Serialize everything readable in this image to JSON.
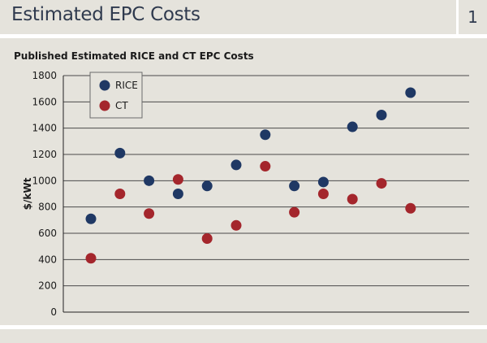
{
  "header": {
    "title": "Estimated EPC Costs",
    "number": "1"
  },
  "chart_data": {
    "type": "scatter",
    "title": "Published Estimated RICE and CT EPC Costs",
    "xlabel": "",
    "ylabel": "$/kWt",
    "ylim": [
      0,
      1800
    ],
    "yticks": [
      0,
      200,
      400,
      600,
      800,
      1000,
      1200,
      1400,
      1600,
      1800
    ],
    "grid": true,
    "legend_position": "top-left",
    "x": [
      1,
      2,
      3,
      4,
      5,
      6,
      7,
      8,
      9,
      10,
      11,
      12
    ],
    "series": [
      {
        "name": "RICE",
        "color": "#1f3864",
        "values": [
          710,
          1210,
          1000,
          900,
          960,
          1120,
          1350,
          960,
          990,
          1410,
          1500,
          1670
        ]
      },
      {
        "name": "CT",
        "color": "#a4262c",
        "values": [
          410,
          900,
          750,
          1010,
          560,
          660,
          1110,
          760,
          900,
          860,
          980,
          790
        ]
      }
    ]
  }
}
